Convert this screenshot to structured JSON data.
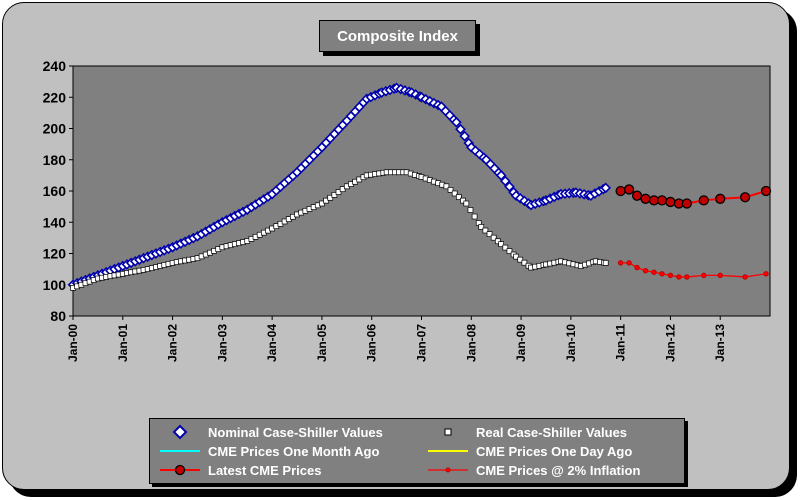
{
  "chart_data": {
    "type": "line",
    "title": "Composite Index",
    "xlabel": "",
    "ylabel": "",
    "ylim": [
      80,
      240
    ],
    "yticks": [
      80,
      100,
      120,
      140,
      160,
      180,
      200,
      220,
      240
    ],
    "xlim": [
      2000.0,
      2014.0
    ],
    "xticks": [
      {
        "label": "Jan-00",
        "x": 2000
      },
      {
        "label": "Jan-01",
        "x": 2001
      },
      {
        "label": "Jan-02",
        "x": 2002
      },
      {
        "label": "Jan-03",
        "x": 2003
      },
      {
        "label": "Jan-04",
        "x": 2004
      },
      {
        "label": "Jan-05",
        "x": 2005
      },
      {
        "label": "Jan-06",
        "x": 2006
      },
      {
        "label": "Jan-07",
        "x": 2007
      },
      {
        "label": "Jan-08",
        "x": 2008
      },
      {
        "label": "Jan-09",
        "x": 2009
      },
      {
        "label": "Jan-10",
        "x": 2010
      },
      {
        "label": "Jan-11",
        "x": 2011
      },
      {
        "label": "Jan-12",
        "x": 2012
      },
      {
        "label": "Jan-13",
        "x": 2013
      }
    ],
    "grid": false,
    "legend_position": "bottom",
    "series": [
      {
        "name": "Nominal Case-Shiller Values",
        "marker": "diamond",
        "color": "#ffffff",
        "edge": "#0000aa",
        "anchors": [
          [
            2000.0,
            100
          ],
          [
            2000.5,
            106
          ],
          [
            2001.0,
            112
          ],
          [
            2001.5,
            118
          ],
          [
            2002.0,
            124
          ],
          [
            2002.5,
            131
          ],
          [
            2003.0,
            140
          ],
          [
            2003.5,
            148
          ],
          [
            2004.0,
            158
          ],
          [
            2004.5,
            172
          ],
          [
            2005.0,
            188
          ],
          [
            2005.5,
            205
          ],
          [
            2005.9,
            219
          ],
          [
            2006.2,
            223
          ],
          [
            2006.5,
            226
          ],
          [
            2006.8,
            223
          ],
          [
            2007.0,
            220
          ],
          [
            2007.4,
            214
          ],
          [
            2007.7,
            204
          ],
          [
            2008.0,
            188
          ],
          [
            2008.3,
            180
          ],
          [
            2008.6,
            170
          ],
          [
            2008.9,
            157
          ],
          [
            2009.2,
            151
          ],
          [
            2009.5,
            154
          ],
          [
            2009.8,
            158
          ],
          [
            2010.1,
            159
          ],
          [
            2010.4,
            157
          ],
          [
            2010.7,
            162
          ]
        ]
      },
      {
        "name": "Real Case-Shiller Values",
        "marker": "dot",
        "color": "#ffffff",
        "edge": "#000000",
        "anchors": [
          [
            2000.0,
            98
          ],
          [
            2000.5,
            104
          ],
          [
            2001.0,
            107
          ],
          [
            2001.5,
            110
          ],
          [
            2002.0,
            114
          ],
          [
            2002.5,
            117
          ],
          [
            2003.0,
            124
          ],
          [
            2003.5,
            128
          ],
          [
            2004.0,
            136
          ],
          [
            2004.5,
            145
          ],
          [
            2005.0,
            152
          ],
          [
            2005.5,
            163
          ],
          [
            2005.9,
            170
          ],
          [
            2006.3,
            172
          ],
          [
            2006.7,
            172
          ],
          [
            2007.0,
            169
          ],
          [
            2007.5,
            163
          ],
          [
            2007.9,
            152
          ],
          [
            2008.2,
            137
          ],
          [
            2008.6,
            126
          ],
          [
            2008.9,
            118
          ],
          [
            2009.2,
            111
          ],
          [
            2009.5,
            113
          ],
          [
            2009.8,
            115
          ],
          [
            2010.2,
            112
          ],
          [
            2010.5,
            115
          ],
          [
            2010.7,
            114
          ]
        ]
      },
      {
        "name": "CME Prices One Month Ago",
        "color": "#00ffff",
        "points": []
      },
      {
        "name": "CME Prices One Day Ago",
        "color": "#ffff00",
        "points": []
      },
      {
        "name": "Latest CME Prices",
        "marker": "circle",
        "color": "#c00000",
        "edge": "#000000",
        "points": [
          [
            2011.0,
            160
          ],
          [
            2011.17,
            161
          ],
          [
            2011.33,
            157
          ],
          [
            2011.5,
            155
          ],
          [
            2011.67,
            154
          ],
          [
            2011.83,
            154
          ],
          [
            2012.0,
            153
          ],
          [
            2012.17,
            152
          ],
          [
            2012.33,
            152
          ],
          [
            2012.67,
            154
          ],
          [
            2013.0,
            155
          ],
          [
            2013.5,
            156
          ],
          [
            2013.92,
            160
          ]
        ]
      },
      {
        "name": "CME Prices @ 2% Inflation",
        "marker": "smalldot",
        "color": "#ff0000",
        "edge": "#c00000",
        "points": [
          [
            2011.0,
            114
          ],
          [
            2011.17,
            114
          ],
          [
            2011.33,
            111
          ],
          [
            2011.5,
            109
          ],
          [
            2011.67,
            108
          ],
          [
            2011.83,
            107
          ],
          [
            2012.0,
            106
          ],
          [
            2012.17,
            105
          ],
          [
            2012.33,
            105
          ],
          [
            2012.67,
            106
          ],
          [
            2013.0,
            106
          ],
          [
            2013.5,
            105
          ],
          [
            2013.92,
            107
          ]
        ]
      }
    ]
  }
}
